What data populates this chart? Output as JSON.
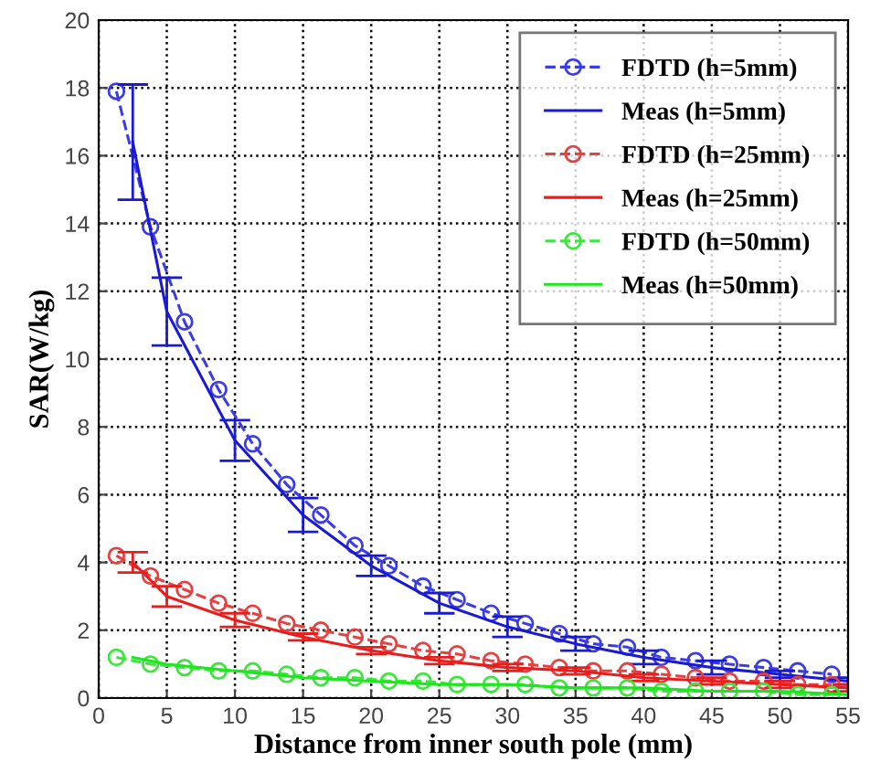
{
  "chart_data": {
    "type": "line",
    "xlabel": "Distance from inner south pole (mm)",
    "ylabel": "SAR(W/kg)",
    "xlim": [
      0,
      55
    ],
    "ylim": [
      0,
      20
    ],
    "xticks": [
      0,
      5,
      10,
      15,
      20,
      25,
      30,
      35,
      40,
      45,
      50,
      55
    ],
    "yticks": [
      0,
      2,
      4,
      6,
      8,
      10,
      12,
      14,
      16,
      18,
      20
    ],
    "grid": true,
    "legend": "top right",
    "series": [
      {
        "name": "FDTD (h=5mm)",
        "color": "#3c3ce6",
        "marker": "circle",
        "line_style": "dashed",
        "x": [
          1.3,
          3.8,
          6.3,
          8.8,
          11.3,
          13.8,
          16.3,
          18.8,
          21.3,
          23.8,
          26.3,
          28.8,
          31.3,
          33.8,
          36.3,
          38.8,
          41.3,
          43.8,
          46.3,
          48.8,
          51.3,
          53.8
        ],
        "values": [
          17.9,
          13.9,
          11.1,
          9.1,
          7.5,
          6.3,
          5.4,
          4.5,
          3.9,
          3.3,
          2.9,
          2.5,
          2.2,
          1.9,
          1.6,
          1.5,
          1.2,
          1.1,
          1.0,
          0.9,
          0.8,
          0.7
        ]
      },
      {
        "name": "Meas (h=5mm)",
        "color": "#1a1ad0",
        "marker": "none",
        "line_style": "solid",
        "x": [
          2.5,
          5,
          10,
          15,
          20,
          25,
          30,
          35,
          40,
          45,
          50,
          55
        ],
        "values": [
          16.4,
          11.4,
          7.6,
          5.4,
          3.9,
          2.8,
          2.1,
          1.6,
          1.2,
          0.9,
          0.7,
          0.5
        ],
        "errors": [
          1.7,
          1.0,
          0.6,
          0.5,
          0.3,
          0.3,
          0.3,
          0.2,
          0.2,
          0.2,
          0.1,
          0.1
        ]
      },
      {
        "name": "FDTD (h=25mm)",
        "color": "#e64040",
        "marker": "circle",
        "line_style": "dashed",
        "x": [
          1.3,
          3.8,
          6.3,
          8.8,
          11.3,
          13.8,
          16.3,
          18.8,
          21.3,
          23.8,
          26.3,
          28.8,
          31.3,
          33.8,
          36.3,
          38.8,
          41.3,
          43.8,
          46.3,
          48.8,
          51.3,
          53.8
        ],
        "values": [
          4.2,
          3.6,
          3.2,
          2.8,
          2.5,
          2.2,
          2.0,
          1.8,
          1.6,
          1.4,
          1.3,
          1.1,
          1.0,
          0.9,
          0.8,
          0.8,
          0.7,
          0.6,
          0.5,
          0.5,
          0.4,
          0.4
        ]
      },
      {
        "name": "Meas (h=25mm)",
        "color": "#e61e1e",
        "marker": "none",
        "line_style": "solid",
        "x": [
          2.5,
          5,
          10,
          15,
          20,
          25,
          30,
          35,
          40,
          45,
          50,
          55
        ],
        "values": [
          4.0,
          3.0,
          2.3,
          1.8,
          1.4,
          1.1,
          0.9,
          0.8,
          0.6,
          0.5,
          0.4,
          0.3
        ],
        "errors": [
          0.3,
          0.3,
          0.2,
          0.1,
          0.1,
          0.1,
          0.1,
          0.1,
          0.1,
          0.1,
          0.1,
          0.1
        ]
      },
      {
        "name": "FDTD (h=50mm)",
        "color": "#3ce63c",
        "marker": "circle",
        "line_style": "dashed",
        "x": [
          1.3,
          3.8,
          6.3,
          8.8,
          11.3,
          13.8,
          16.3,
          18.8,
          21.3,
          23.8,
          26.3,
          28.8,
          31.3,
          33.8,
          36.3,
          38.8,
          41.3,
          43.8,
          46.3,
          48.8,
          51.3,
          53.8
        ],
        "values": [
          1.2,
          1.0,
          0.9,
          0.8,
          0.8,
          0.7,
          0.6,
          0.6,
          0.5,
          0.5,
          0.4,
          0.4,
          0.4,
          0.3,
          0.3,
          0.3,
          0.2,
          0.2,
          0.2,
          0.2,
          0.1,
          0.1
        ]
      },
      {
        "name": "Meas (h=50mm)",
        "color": "#1ee61e",
        "marker": "none",
        "line_style": "solid",
        "x": [
          2.5,
          5,
          10,
          15,
          20,
          25,
          30,
          35,
          40,
          45,
          50,
          55
        ],
        "values": [
          1.2,
          1.0,
          0.8,
          0.6,
          0.5,
          0.4,
          0.4,
          0.3,
          0.3,
          0.2,
          0.2,
          0.1
        ]
      }
    ]
  }
}
